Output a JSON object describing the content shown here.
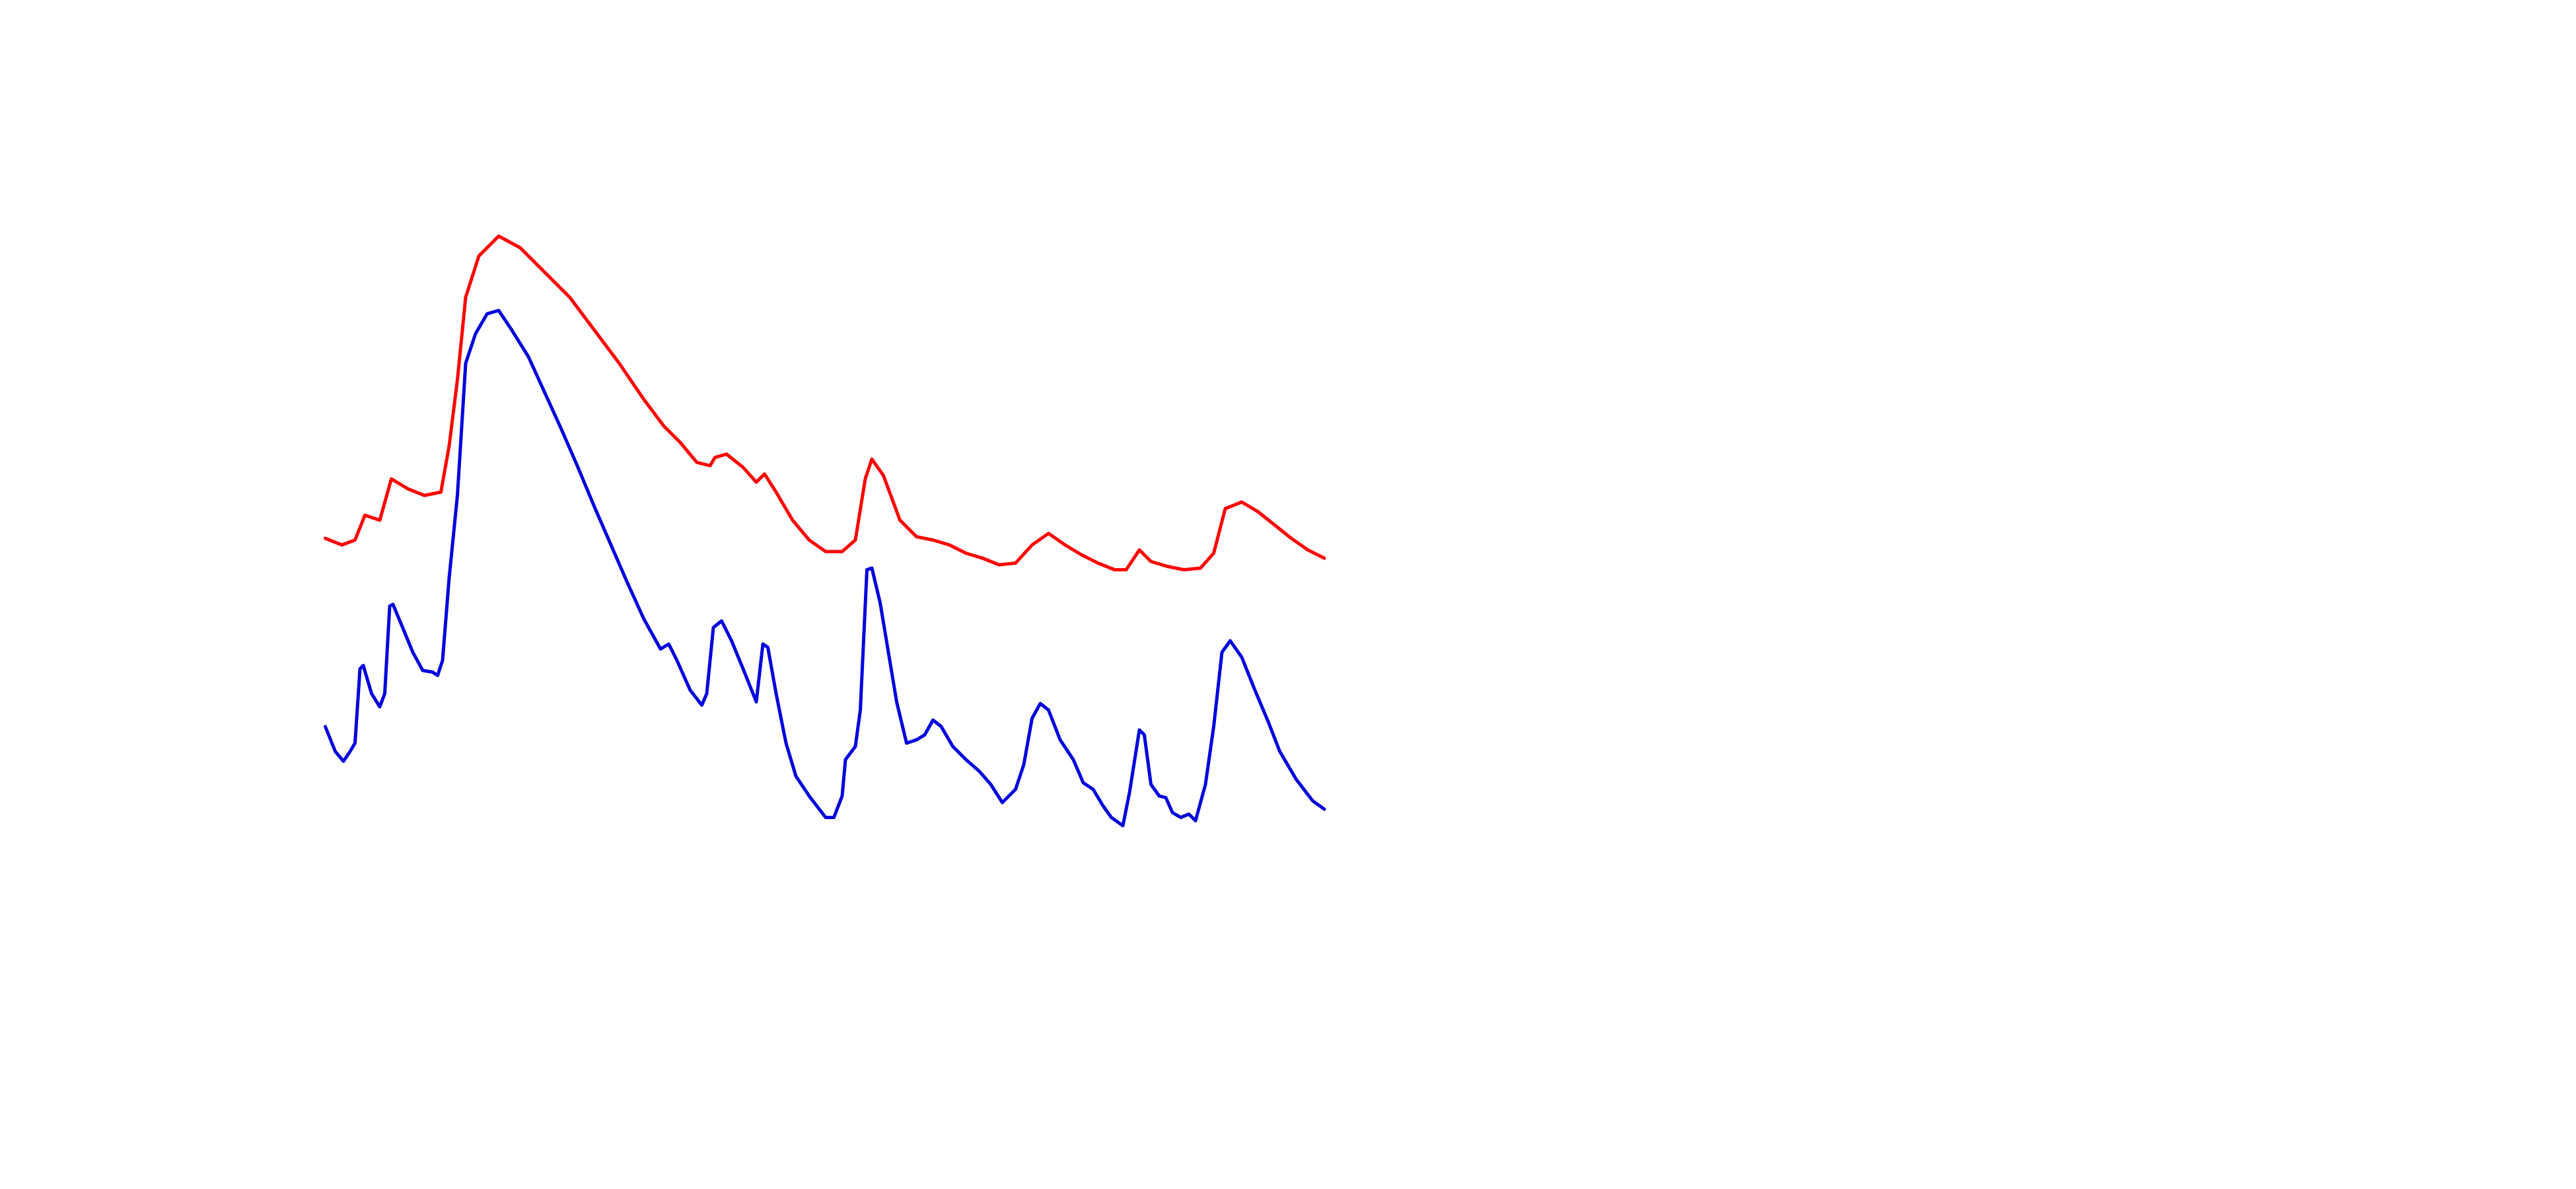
{
  "chart_data": {
    "type": "line",
    "xlim": [
      0,
      1560
    ],
    "ylim": [
      720,
      0
    ],
    "series": [
      {
        "color": "#ff0000",
        "x": [
          197,
          207,
          215,
          221,
          230,
          237,
          247,
          257,
          267,
          272,
          277,
          282,
          290,
          302,
          315,
          330,
          345,
          360,
          375,
          390,
          402,
          412,
          422,
          430,
          433,
          440,
          450,
          458,
          463,
          470,
          480,
          490,
          500,
          510,
          518,
          524,
          528,
          535,
          545,
          555,
          565,
          575,
          585,
          595,
          605,
          615,
          625,
          635,
          645,
          655,
          665,
          675,
          682,
          690,
          697,
          707,
          717,
          727,
          735,
          742,
          752,
          762,
          772,
          782,
          792,
          802
        ],
        "values": [
          326,
          330,
          327,
          312,
          315,
          290,
          296,
          300,
          298,
          270,
          230,
          180,
          155,
          143,
          150,
          165,
          180,
          200,
          220,
          242,
          258,
          268,
          280,
          282,
          277,
          275,
          283,
          292,
          287,
          298,
          315,
          327,
          334,
          334,
          327,
          290,
          278,
          288,
          315,
          325,
          327,
          330,
          335,
          338,
          342,
          341,
          330,
          323,
          330,
          336,
          341,
          345,
          345,
          333,
          340,
          343,
          345,
          344,
          335,
          308,
          304,
          310,
          318,
          326,
          333,
          338
        ]
      },
      {
        "color": "#0000dd",
        "x": [
          197,
          203,
          208,
          212,
          215,
          218,
          220,
          225,
          230,
          233,
          236,
          238,
          243,
          250,
          256,
          262,
          265,
          268,
          272,
          277,
          282,
          288,
          295,
          302,
          310,
          320,
          330,
          340,
          350,
          360,
          370,
          380,
          390,
          400,
          405,
          410,
          418,
          425,
          428,
          432,
          437,
          443,
          450,
          458,
          462,
          465,
          470,
          476,
          482,
          490,
          500,
          505,
          510,
          512,
          518,
          521,
          525,
          528,
          533,
          538,
          543,
          549,
          555,
          560,
          565,
          570,
          577,
          585,
          593,
          600,
          607,
          615,
          620,
          625,
          630,
          635,
          642,
          650,
          656,
          662,
          668,
          673,
          680,
          684,
          690,
          693,
          697,
          702,
          706,
          710,
          715,
          720,
          724,
          730,
          735,
          740,
          745,
          752,
          760,
          768,
          775,
          785,
          795,
          802
        ],
        "values": [
          440,
          455,
          461,
          455,
          450,
          405,
          403,
          420,
          428,
          420,
          367,
          366,
          378,
          395,
          406,
          407,
          409,
          400,
          350,
          300,
          220,
          202,
          190,
          188,
          200,
          216,
          238,
          260,
          283,
          307,
          330,
          353,
          375,
          393,
          390,
          400,
          418,
          427,
          420,
          380,
          376,
          388,
          405,
          425,
          390,
          392,
          420,
          450,
          470,
          482,
          495,
          495,
          482,
          460,
          452,
          430,
          345,
          344,
          365,
          395,
          425,
          450,
          448,
          445,
          436,
          440,
          452,
          460,
          467,
          475,
          486,
          478,
          463,
          435,
          426,
          430,
          448,
          460,
          474,
          478,
          488,
          495,
          500,
          480,
          442,
          445,
          475,
          482,
          483,
          492,
          495,
          493,
          497,
          475,
          440,
          395,
          388,
          398,
          418,
          437,
          455,
          472,
          485,
          490
        ]
      }
    ]
  }
}
